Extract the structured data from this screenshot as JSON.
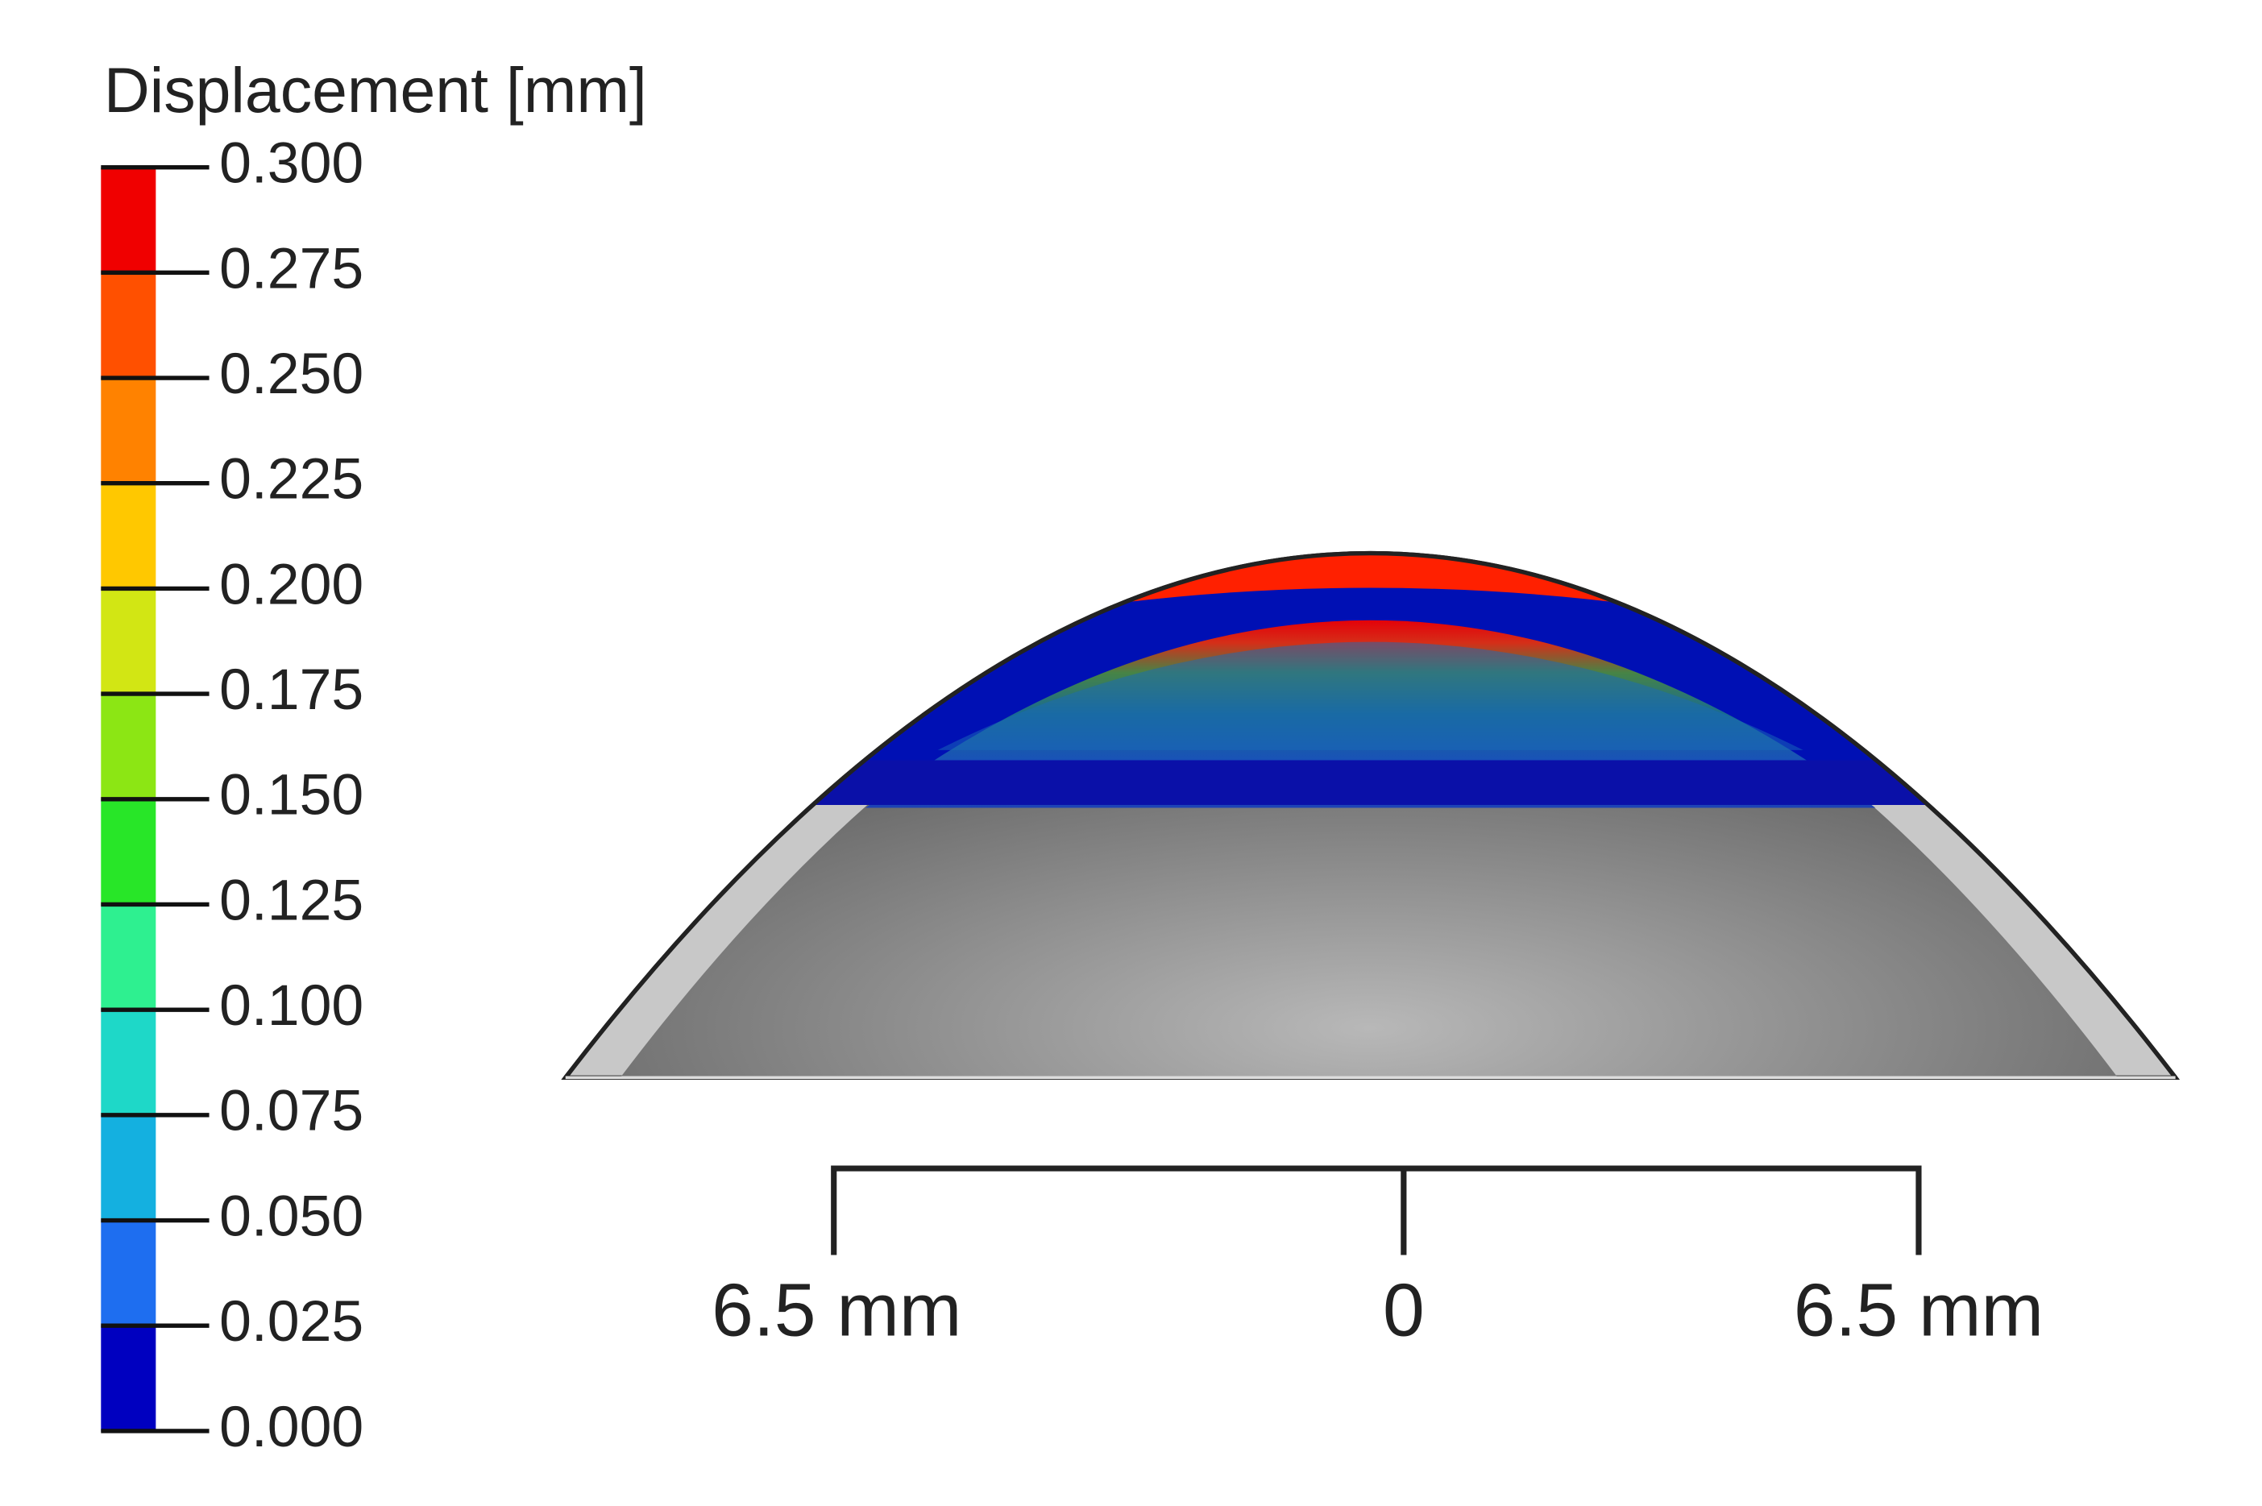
{
  "colorbar": {
    "title": "Displacement [mm]",
    "range": [
      0,
      0.3
    ],
    "ticks": [
      {
        "value": 0,
        "label": "0.000"
      },
      {
        "value": 0.025,
        "label": "0.025"
      },
      {
        "value": 0.05,
        "label": "0.050"
      },
      {
        "value": 0.075,
        "label": "0.075"
      },
      {
        "value": 0.1,
        "label": "0.100"
      },
      {
        "value": 0.125,
        "label": "0.125"
      },
      {
        "value": 0.15,
        "label": "0.150"
      },
      {
        "value": 0.175,
        "label": "0.175"
      },
      {
        "value": 0.2,
        "label": "0.200"
      },
      {
        "value": 0.225,
        "label": "0.225"
      },
      {
        "value": 0.25,
        "label": "0.250"
      },
      {
        "value": 0.275,
        "label": "0.275"
      },
      {
        "value": 0.3,
        "label": "0.300"
      }
    ],
    "colors": [
      "#0000c0",
      "#1e6ef0",
      "#14b0e0",
      "#1ed8c8",
      "#2ef090",
      "#28e628",
      "#8ce614",
      "#d2e614",
      "#ffc800",
      "#ff8200",
      "#ff5000",
      "#f00000"
    ]
  },
  "scale_bar": {
    "labels": [
      "6.5 mm",
      "0",
      "6.5 mm"
    ]
  }
}
